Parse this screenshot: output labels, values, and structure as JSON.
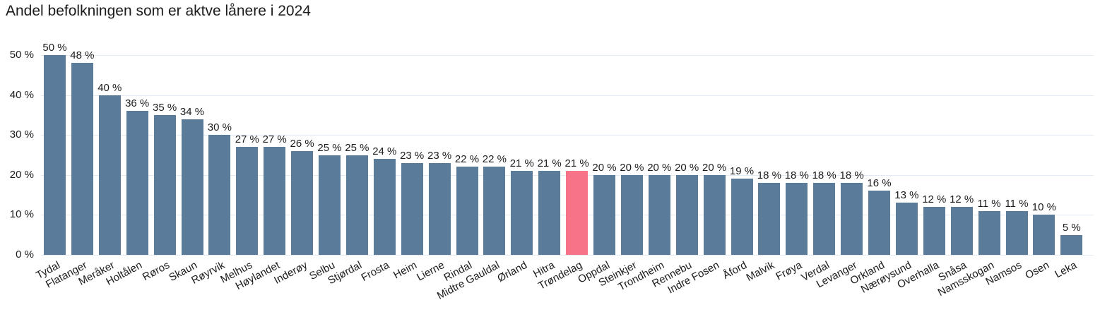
{
  "title": "Andel befolkningen som er aktve lånere i 2024",
  "chart_data": {
    "type": "bar",
    "title": "Andel befolkningen som er aktve lånere i 2024",
    "categories": [
      "Tydal",
      "Flatanger",
      "Meråker",
      "Holtålen",
      "Røros",
      "Skaun",
      "Røyrvik",
      "Melhus",
      "Høylandet",
      "Inderøy",
      "Selbu",
      "Stjørdal",
      "Frosta",
      "Heim",
      "Lierne",
      "Rindal",
      "Midtre Gauldal",
      "Ørland",
      "Hitra",
      "Trøndelag",
      "Oppdal",
      "Steinkjer",
      "Trondheim",
      "Rennebu",
      "Indre Fosen",
      "Åford",
      "Malvik",
      "Frøya",
      "Verdal",
      "Levanger",
      "Orkland",
      "Nærøysund",
      "Overhalla",
      "Snåsa",
      "Namsskogan",
      "Namsos",
      "Osen",
      "Leka"
    ],
    "values": [
      50,
      48,
      40,
      36,
      35,
      34,
      30,
      27,
      27,
      26,
      25,
      25,
      24,
      23,
      23,
      22,
      22,
      21,
      21,
      21,
      20,
      20,
      20,
      20,
      20,
      19,
      18,
      18,
      18,
      18,
      16,
      13,
      12,
      12,
      11,
      11,
      10,
      5
    ],
    "value_suffix": " %",
    "highlight_category": "Trøndelag",
    "xlabel": "",
    "ylabel": "",
    "ylim": [
      0,
      50
    ],
    "ytick_values": [
      0,
      10,
      20,
      30,
      40,
      50
    ],
    "ytick_labels": [
      "0 %",
      "10 %",
      "20 %",
      "30 %",
      "40 %",
      "50 %"
    ],
    "grid": true,
    "legend": "none",
    "colors": {
      "bar": "#5b7b9b",
      "highlight": "#f77488",
      "gridline": "#e4eaf1",
      "text": "#1c1c1c",
      "background": "#ffffff"
    }
  }
}
